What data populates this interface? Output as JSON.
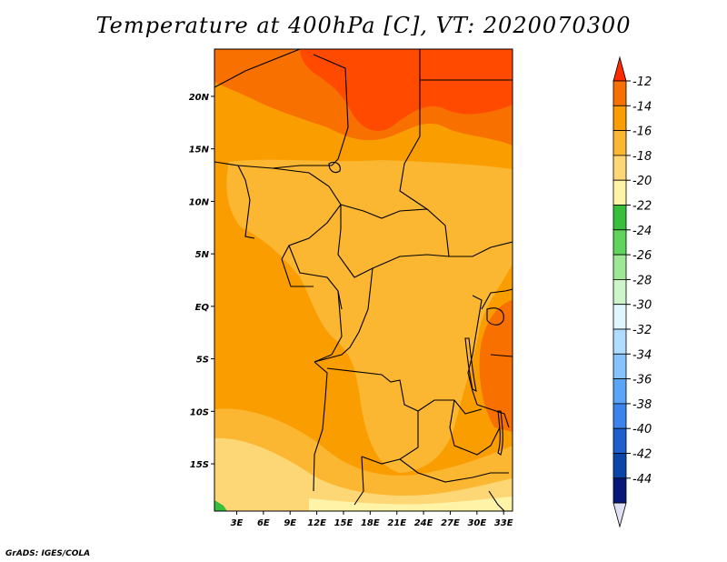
{
  "title": "Temperature at 400hPa [C], VT: 2020070300",
  "credit": "GrADS: IGES/COLA",
  "map": {
    "lon_ticks": [
      "3E",
      "6E",
      "9E",
      "12E",
      "15E",
      "18E",
      "21E",
      "24E",
      "27E",
      "30E",
      "33E"
    ],
    "lat_ticks": [
      "20N",
      "15N",
      "10N",
      "5N",
      "EQ",
      "5S",
      "10S",
      "15S"
    ],
    "lon_range": [
      0.5,
      34
    ],
    "lat_range": [
      -19.5,
      24.5
    ]
  },
  "colorbar": {
    "labels": [
      "-12",
      "-14",
      "-16",
      "-18",
      "-20",
      "-22",
      "-24",
      "-26",
      "-28",
      "-30",
      "-32",
      "-34",
      "-36",
      "-38",
      "-40",
      "-42",
      "-44"
    ],
    "colors": [
      "#ff2a00",
      "#f77000",
      "#f99d00",
      "#fbb731",
      "#fdd775",
      "#fff3a8",
      "#37bf3c",
      "#61d45e",
      "#9ee895",
      "#cef4c9",
      "#e1f5ff",
      "#afdcff",
      "#86c3fd",
      "#5aa5f7",
      "#3b84ec",
      "#1e5fd0",
      "#0a45a8",
      "#07187a",
      "#e0e0f5"
    ]
  }
}
